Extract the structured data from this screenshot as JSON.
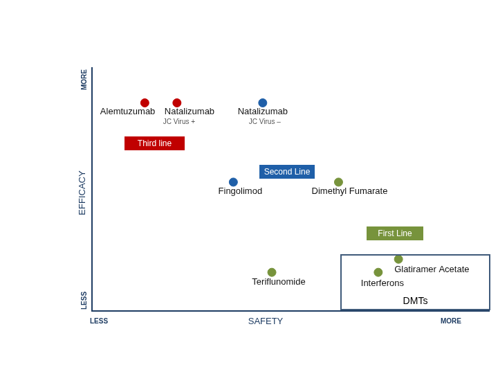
{
  "chart_data": {
    "type": "scatter",
    "xlabel": "SAFETY",
    "ylabel": "EFFICACY",
    "x_axis_ends": [
      "LESS",
      "MORE"
    ],
    "y_axis_ends": [
      "LESS",
      "MORE"
    ],
    "x": [
      13.3,
      21.4,
      43.0,
      35.6,
      62.1,
      45.3,
      77.2,
      72.1
    ],
    "values": [
      85.6,
      85.6,
      85.6,
      53.0,
      53.0,
      15.9,
      21.3,
      15.9
    ],
    "point_labels": [
      "Alemtuzumab",
      "Natalizumab",
      "Natalizumab",
      "Fingolimod",
      "Dimethyl Fumarate",
      "Teriflunomide",
      "Glatiramer Acetate",
      "Interferons"
    ],
    "point_notes": [
      null,
      "JC Virus +",
      "JC Virus –",
      null,
      null,
      null,
      null,
      null
    ],
    "colors": [
      "#c00000",
      "#c00000",
      "#1f5fa8",
      "#1f5fa8",
      "#77933c",
      "#77933c",
      "#77933c",
      "#77933c"
    ],
    "xlim": [
      0,
      100
    ],
    "ylim": [
      0,
      100
    ],
    "tick_labels": false,
    "grid": false,
    "annotations": [
      {
        "text": "Third line",
        "color": "#c00000"
      },
      {
        "text": "Second Line",
        "color": "#1f5fa8"
      },
      {
        "text": "First Line",
        "color": "#77933c"
      },
      {
        "text": "DMTs",
        "color": "#3f5a7a"
      }
    ]
  }
}
